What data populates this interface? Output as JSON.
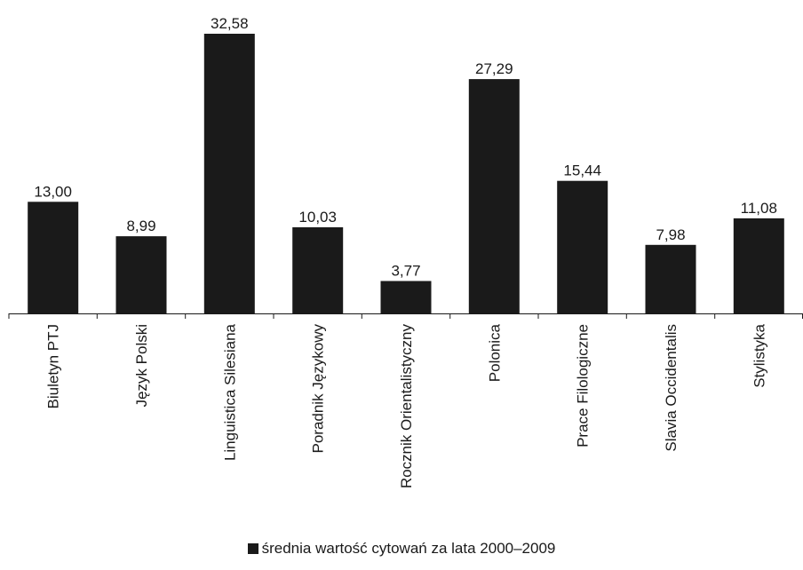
{
  "chart_data": {
    "type": "bar",
    "categories": [
      "Biuletyn PTJ",
      "Język Polski",
      "Linguistica Silesiana",
      "Poradnik Językowy",
      "Rocznik Orientalistyczny",
      "Polonica",
      "Prace Filologiczne",
      "Slavia Occidentalis",
      "Stylistyka"
    ],
    "series": [
      {
        "name": "średnia wartość cytowań za lata 2000–2009",
        "values": [
          13.0,
          8.99,
          32.58,
          10.03,
          3.77,
          27.29,
          15.44,
          7.98,
          11.08
        ],
        "value_labels": [
          "13,00",
          "8,99",
          "32,58",
          "10,03",
          "3,77",
          "27,29",
          "15,44",
          "7,98",
          "11,08"
        ],
        "color": "#1a1a1a"
      }
    ],
    "title": "",
    "xlabel": "",
    "ylabel": "",
    "ylim": [
      0,
      35
    ],
    "grid": false,
    "legend_position": "bottom-center"
  }
}
